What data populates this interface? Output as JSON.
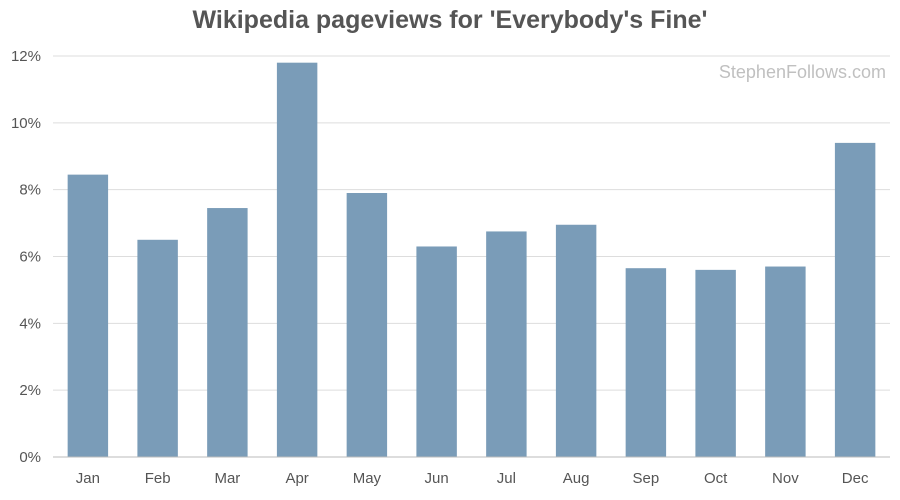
{
  "chart_data": {
    "type": "bar",
    "title": "Wikipedia pageviews for 'Everybody's Fine'",
    "watermark": "StephenFollows.com",
    "categories": [
      "Jan",
      "Feb",
      "Mar",
      "Apr",
      "May",
      "Jun",
      "Jul",
      "Aug",
      "Sep",
      "Oct",
      "Nov",
      "Dec"
    ],
    "values": [
      8.45,
      6.5,
      7.45,
      11.8,
      7.9,
      6.3,
      6.75,
      6.95,
      5.65,
      5.6,
      5.7,
      9.4
    ],
    "value_unit": "%",
    "ylim": [
      0,
      12
    ],
    "yticks": [
      0,
      2,
      4,
      6,
      8,
      10,
      12
    ],
    "ytick_labels": [
      "0%",
      "2%",
      "4%",
      "6%",
      "8%",
      "10%",
      "12%"
    ],
    "xlabel": "",
    "ylabel": "",
    "grid": true,
    "legend": "none",
    "colors": {
      "bar": "#7a9cb8",
      "grid": "#dddddd",
      "axis": "#bbbbbb",
      "text": "#555555",
      "watermark": "#c0c0c0"
    }
  }
}
